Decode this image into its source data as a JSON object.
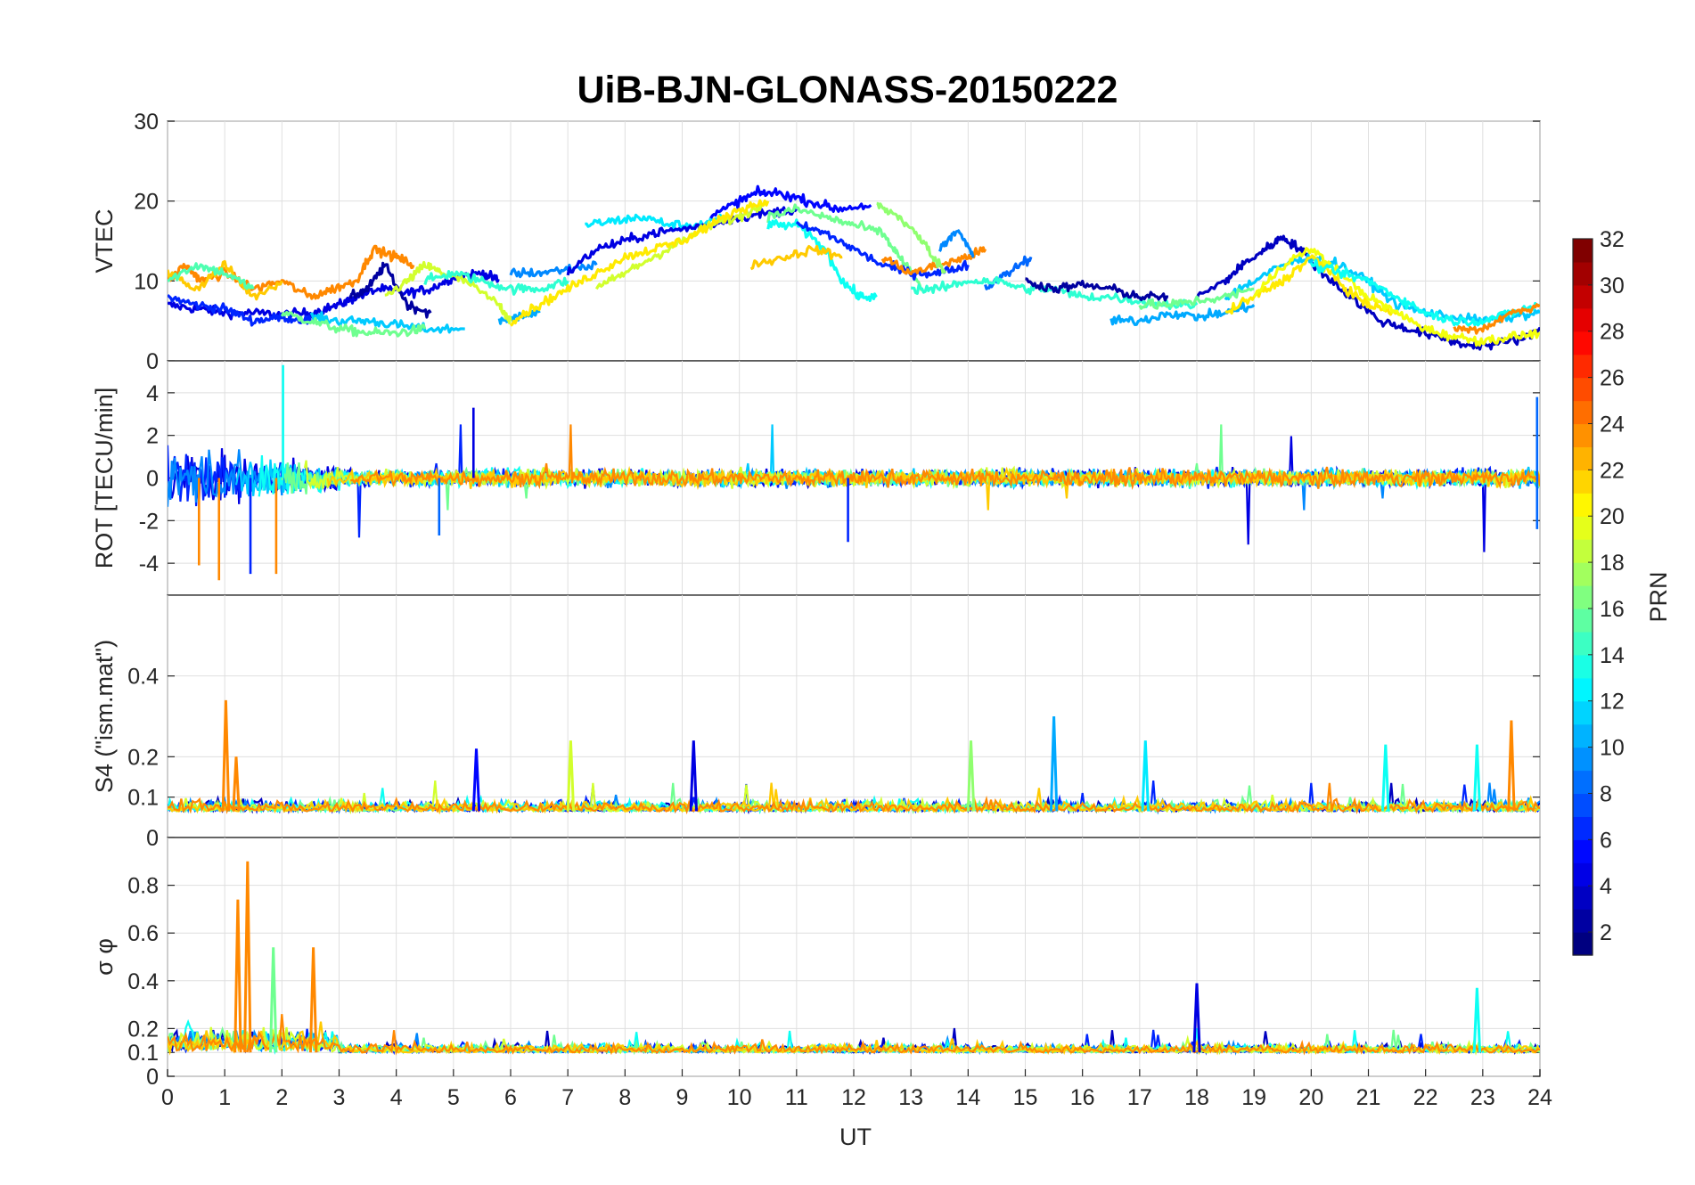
{
  "chart_data": {
    "type": "line",
    "title": "UiB-BJN-GLONASS-20150222",
    "xlabel": "UT",
    "xlim": [
      0,
      24
    ],
    "x_ticks": [
      0,
      1,
      2,
      3,
      4,
      5,
      6,
      7,
      8,
      9,
      10,
      11,
      12,
      13,
      14,
      15,
      16,
      17,
      18,
      19,
      20,
      21,
      22,
      23,
      24
    ],
    "grid": true,
    "panels": [
      {
        "id": "vtec",
        "ylabel": "VTEC",
        "ylim": [
          0,
          30
        ],
        "y_ticks": [
          0,
          10,
          20,
          30
        ],
        "series": [
          {
            "prn": 4,
            "x": [
              0,
              0.5,
              1,
              1.5,
              2,
              2.5,
              3,
              3.3,
              3.7,
              4.2,
              4.6,
              5,
              5.5,
              5.8
            ],
            "y": [
              7,
              6.5,
              6,
              6,
              5.8,
              6,
              7,
              8,
              9,
              8.5,
              9,
              10.5,
              11,
              10
            ]
          },
          {
            "prn": 6,
            "x": [
              0,
              0.5,
              1,
              1.5,
              2,
              2.5
            ],
            "y": [
              8,
              7,
              6.5,
              5,
              5.5,
              5
            ]
          },
          {
            "prn": 2,
            "x": [
              3.2,
              3.5,
              3.8,
              4.2,
              4.6
            ],
            "y": [
              8,
              9,
              12,
              7,
              6
            ]
          },
          {
            "prn": 11,
            "x": [
              2.5,
              3,
              3.5,
              4,
              4.5,
              5.2
            ],
            "y": [
              5.5,
              5,
              5,
              4.5,
              4,
              4
            ]
          },
          {
            "prn": 16,
            "x": [
              2,
              2.5,
              3,
              3.5,
              4,
              4.5
            ],
            "y": [
              6,
              5,
              4,
              3.5,
              3.5,
              4
            ]
          },
          {
            "prn": 10,
            "x": [
              5.8,
              6.2,
              6.5
            ],
            "y": [
              5,
              5.5,
              6
            ]
          },
          {
            "prn": 19,
            "x": [
              3.8,
              4.2,
              4.5,
              4.8,
              5.2,
              5.8,
              6
            ],
            "y": [
              8,
              10,
              12,
              11,
              10,
              7,
              5
            ]
          },
          {
            "prn": 14,
            "x": [
              4.5,
              5,
              5.5,
              6,
              6.5,
              7
            ],
            "y": [
              10,
              11,
              10,
              9,
              9,
              10
            ]
          },
          {
            "prn": 24,
            "x": [
              0,
              0.3,
              0.6,
              1,
              1.5,
              2,
              2.5,
              2.9,
              3.3,
              3.6,
              4,
              4.3
            ],
            "y": [
              10,
              12,
              10,
              11,
              9,
              10,
              8,
              9,
              10,
              14,
              13,
              12
            ]
          },
          {
            "prn": 22,
            "x": [
              0,
              0.5,
              1,
              1.5,
              2
            ],
            "y": [
              11,
              9,
              12,
              8,
              10
            ]
          },
          {
            "prn": 15,
            "x": [
              0,
              0.5,
              1,
              1.5
            ],
            "y": [
              10,
              12,
              11,
              9
            ]
          },
          {
            "prn": 12,
            "x": [
              7.3,
              7.8,
              8.3,
              8.8,
              9.3,
              9.8
            ],
            "y": [
              17,
              17.5,
              18,
              17,
              17,
              18
            ]
          },
          {
            "prn": 9,
            "x": [
              6,
              6.5,
              7,
              7.5
            ],
            "y": [
              11,
              11,
              11.5,
              12
            ]
          },
          {
            "prn": 4,
            "x": [
              7,
              7.5,
              8,
              8.5,
              9,
              9.5,
              10,
              10.5,
              11
            ],
            "y": [
              11,
              14,
              15,
              16,
              16.5,
              17,
              18,
              18.5,
              19
            ]
          },
          {
            "prn": 5,
            "x": [
              9.5,
              10,
              10.3,
              10.7,
              11.2,
              11.7,
              12.3
            ],
            "y": [
              18,
              20,
              21,
              21,
              20,
              19,
              19.5
            ]
          },
          {
            "prn": 19,
            "x": [
              7.5,
              8,
              8.5,
              9,
              9.5,
              10,
              10.4
            ],
            "y": [
              9,
              11,
              13,
              15,
              17,
              18,
              19.5
            ]
          },
          {
            "prn": 21,
            "x": [
              6,
              6.5,
              7,
              7.5,
              8,
              8.5,
              9,
              9.5,
              10,
              10.5
            ],
            "y": [
              5,
              7,
              9,
              11,
              13,
              14,
              15,
              17,
              19,
              20
            ]
          },
          {
            "prn": 16,
            "x": [
              10.5,
              11,
              11.5,
              12,
              12.5,
              12.8,
              13.2
            ],
            "y": [
              18,
              19,
              18,
              17,
              16,
              13,
              9
            ]
          },
          {
            "prn": 13,
            "x": [
              10.5,
              11,
              11.5,
              11.8,
              12.1,
              12.4
            ],
            "y": [
              17,
              17,
              14,
              10,
              8,
              8
            ]
          },
          {
            "prn": 6,
            "x": [
              11,
              11.5,
              12,
              12.5,
              13,
              13.5,
              14
            ],
            "y": [
              17,
              16,
              14,
              12,
              11,
              11,
              12
            ]
          },
          {
            "prn": 22,
            "x": [
              10.2,
              10.8,
              11.3,
              11.8
            ],
            "y": [
              12,
              13,
              14,
              13
            ]
          },
          {
            "prn": 24,
            "x": [
              12.5,
              13,
              13.5,
              14,
              14.3
            ],
            "y": [
              13,
              11,
              12,
              13,
              14
            ]
          },
          {
            "prn": 17,
            "x": [
              12.4,
              12.8,
              13.2,
              13.6
            ],
            "y": [
              19.5,
              18,
              15,
              11
            ]
          },
          {
            "prn": 9,
            "x": [
              13.5,
              13.8,
              14.1
            ],
            "y": [
              14,
              16.5,
              13
            ]
          },
          {
            "prn": 8,
            "x": [
              14.3,
              14.7,
              15.1
            ],
            "y": [
              9,
              11,
              13
            ]
          },
          {
            "prn": 14,
            "x": [
              13,
              13.5,
              14,
              14.5,
              15,
              15.5,
              16,
              16.5,
              17,
              17.5,
              18
            ],
            "y": [
              9,
              9,
              10,
              10,
              9,
              9,
              8,
              8,
              7.5,
              7,
              7
            ]
          },
          {
            "prn": 2,
            "x": [
              15,
              15.5,
              16,
              16.5,
              17,
              17.5
            ],
            "y": [
              10,
              9,
              9.5,
              9,
              8,
              8
            ]
          },
          {
            "prn": 10,
            "x": [
              16.5,
              17,
              17.5,
              18,
              18.5,
              19
            ],
            "y": [
              5,
              5,
              6,
              5.5,
              6,
              7
            ]
          },
          {
            "prn": 3,
            "x": [
              18,
              18.5,
              18.8,
              19.2,
              19.5,
              19.8,
              20.2,
              20.7,
              21.2,
              21.7,
              22.2,
              22.7,
              23.2,
              23.8,
              24
            ],
            "y": [
              8,
              10,
              12,
              14,
              15.5,
              14,
              11,
              8,
              5,
              4,
              3,
              2,
              2,
              3,
              4
            ]
          },
          {
            "prn": 11,
            "x": [
              18.5,
              19,
              19.5,
              20,
              20.5,
              21,
              21.5,
              22,
              22.5,
              23,
              23.5,
              24
            ],
            "y": [
              8,
              10,
              12,
              13,
              12,
              10,
              7,
              6,
              5.5,
              5,
              5.5,
              6
            ]
          },
          {
            "prn": 21,
            "x": [
              18.5,
              19,
              19.5,
              20,
              20.2,
              20.6,
              21,
              21.5
            ],
            "y": [
              6,
              8,
              10,
              13,
              12,
              9,
              7,
              6
            ]
          },
          {
            "prn": 20,
            "x": [
              19,
              19.5,
              20,
              20.5,
              21,
              21.5,
              22,
              22.5,
              23,
              23.5,
              24
            ],
            "y": [
              8,
              12,
              14,
              11,
              8,
              6,
              4,
              3,
              2.5,
              3,
              3.5
            ]
          },
          {
            "prn": 13,
            "x": [
              20,
              20.5,
              21,
              21.5,
              22,
              22.5,
              23,
              23.5,
              24
            ],
            "y": [
              12,
              11,
              10,
              8,
              6,
              5,
              5,
              6,
              7
            ]
          },
          {
            "prn": 24,
            "x": [
              22.5,
              23,
              23.5,
              24
            ],
            "y": [
              4,
              4,
              6,
              7
            ]
          },
          {
            "prn": 16,
            "x": [
              17,
              17.5,
              18,
              18.5,
              19
            ],
            "y": [
              7,
              7,
              7.5,
              8,
              9
            ]
          }
        ]
      },
      {
        "id": "rot",
        "ylabel": "ROT [TECU/min]",
        "ylim": [
          -5.5,
          5.5
        ],
        "y_ticks": [
          -4,
          -2,
          0,
          2,
          4
        ],
        "series_note": "noise traces around zero, strongest 0-3 UT"
      },
      {
        "id": "s4",
        "ylabel": "S4 (\"ism.mat\")",
        "ylim": [
          0,
          0.6
        ],
        "y_ticks": [
          0,
          0.1,
          0.2,
          0.4
        ],
        "spikes": [
          {
            "prn": 24,
            "x": 1.02,
            "y": 0.34
          },
          {
            "prn": 24,
            "x": 1.2,
            "y": 0.2
          },
          {
            "prn": 5,
            "x": 5.4,
            "y": 0.22
          },
          {
            "prn": 19,
            "x": 7.05,
            "y": 0.24
          },
          {
            "prn": 4,
            "x": 9.2,
            "y": 0.24
          },
          {
            "prn": 17,
            "x": 14.05,
            "y": 0.24
          },
          {
            "prn": 10,
            "x": 15.5,
            "y": 0.3
          },
          {
            "prn": 12,
            "x": 17.1,
            "y": 0.24
          },
          {
            "prn": 24,
            "x": 23.5,
            "y": 0.29
          },
          {
            "prn": 13,
            "x": 21.3,
            "y": 0.23
          },
          {
            "prn": 13,
            "x": 22.9,
            "y": 0.23
          }
        ]
      },
      {
        "id": "sigma_phi",
        "ylabel": "σ φ",
        "ylim": [
          0,
          1
        ],
        "y_ticks": [
          0,
          0.1,
          0.2,
          0.4,
          0.6,
          0.8
        ],
        "spikes": [
          {
            "prn": 24,
            "x": 1.4,
            "y": 0.9
          },
          {
            "prn": 24,
            "x": 1.23,
            "y": 0.74
          },
          {
            "prn": 16,
            "x": 1.85,
            "y": 0.54
          },
          {
            "prn": 24,
            "x": 2.55,
            "y": 0.54
          },
          {
            "prn": 4,
            "x": 18.0,
            "y": 0.39
          },
          {
            "prn": 13,
            "x": 22.9,
            "y": 0.37
          }
        ]
      }
    ],
    "colorbar": {
      "label": "PRN",
      "range": [
        1,
        32
      ],
      "ticks": [
        2,
        4,
        6,
        8,
        10,
        12,
        14,
        16,
        18,
        20,
        22,
        24,
        26,
        28,
        30,
        32
      ],
      "colormap": "jet"
    }
  }
}
